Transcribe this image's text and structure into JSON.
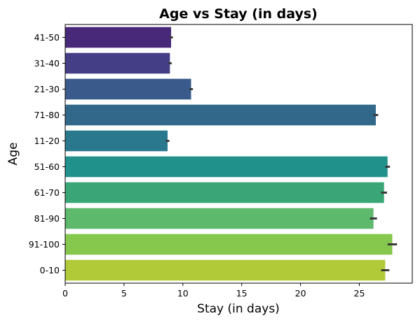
{
  "chart_data": {
    "type": "bar",
    "orientation": "horizontal",
    "title": "Age vs Stay (in days)",
    "xlabel": "Stay (in days)",
    "ylabel": "Age",
    "xlim": [
      0,
      29.5
    ],
    "xticks": [
      0,
      5,
      10,
      15,
      20,
      25
    ],
    "categories": [
      "41-50",
      "31-40",
      "21-30",
      "71-80",
      "11-20",
      "51-60",
      "61-70",
      "81-90",
      "91-100",
      "0-10"
    ],
    "values": [
      9.0,
      8.9,
      10.7,
      26.4,
      8.7,
      27.4,
      27.1,
      26.2,
      27.8,
      27.2
    ],
    "error_bars": [
      0.15,
      0.15,
      0.15,
      0.2,
      0.15,
      0.2,
      0.25,
      0.3,
      0.4,
      0.35
    ],
    "colors": [
      "#482878",
      "#433e85",
      "#3b5a8c",
      "#32698b",
      "#2a788e",
      "#21918c",
      "#3aa577",
      "#5db96b",
      "#86c84d",
      "#b0ca38"
    ],
    "error_color": "#3b3b3b",
    "grid": false,
    "legend": "none"
  }
}
